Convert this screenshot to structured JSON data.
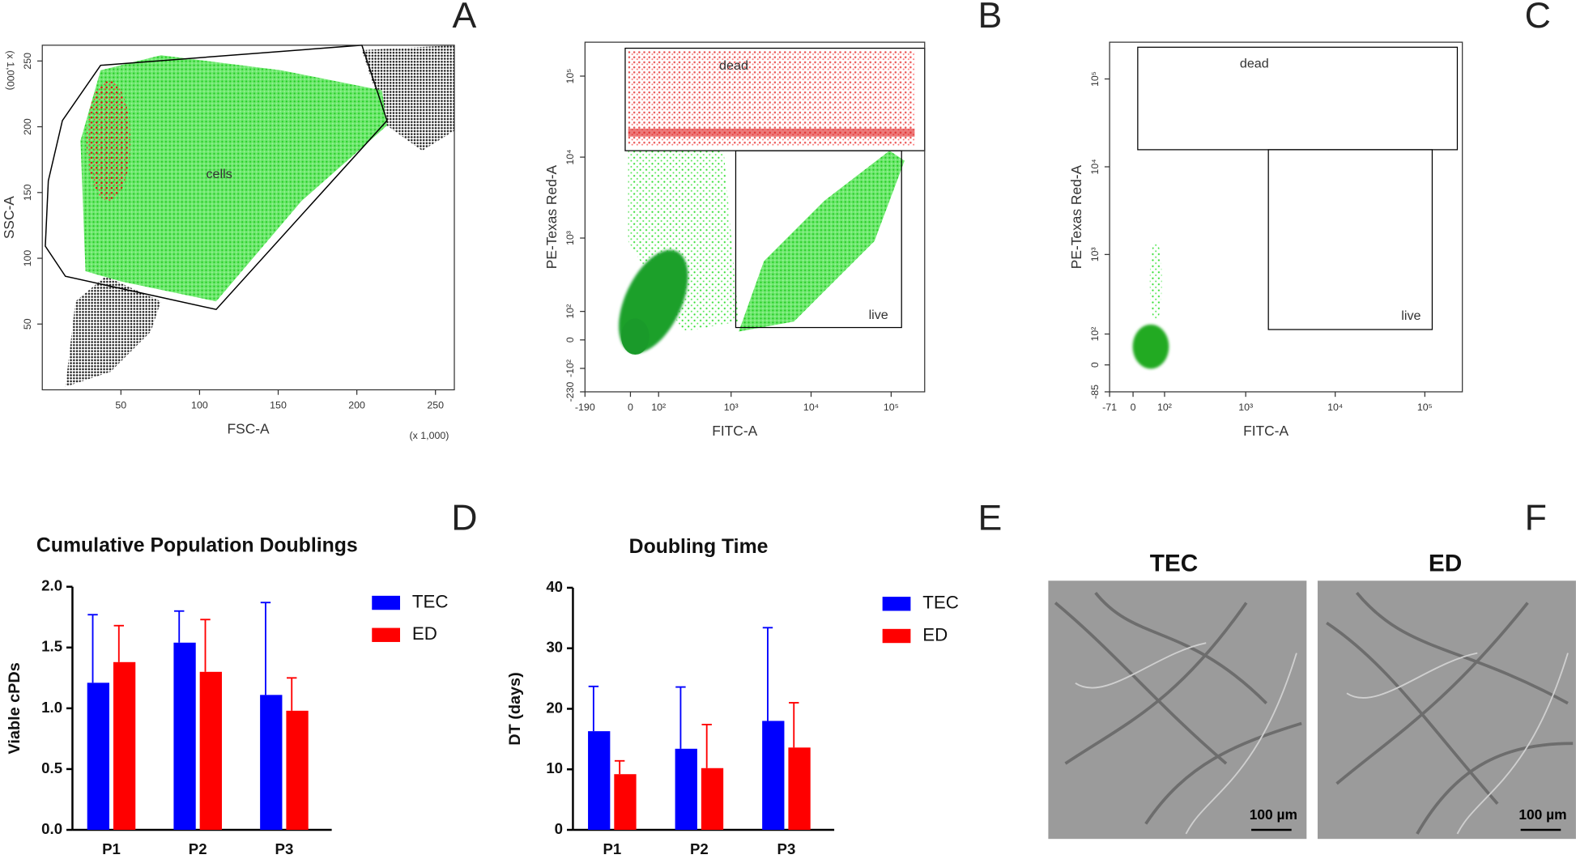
{
  "chart_data": [
    {
      "type": "scatter",
      "panel": "A",
      "x_label": "FSC-A",
      "y_label": "SSC-A",
      "x_multiplier": "(x 1,000)",
      "y_multiplier": "(x 1,000)",
      "annotations": [
        "cells"
      ],
      "xscale": "linear",
      "yscale": "linear",
      "xlim": [
        0,
        262
      ],
      "ylim": [
        0,
        262
      ],
      "xticks": [
        50,
        100,
        150,
        200,
        250
      ],
      "yticks": [
        50,
        100,
        150,
        200,
        250
      ]
    },
    {
      "type": "scatter",
      "panel": "B",
      "x_label": "FITC-A",
      "y_label": "PE-Texas Red-A",
      "annotations": [
        "dead",
        "live"
      ],
      "xscale": "biexponential",
      "yscale": "biexponential",
      "xlim": [
        -190,
        262144
      ],
      "ylim": [
        -230,
        262144
      ],
      "xticks": [
        -190,
        0,
        {
          "value": 100,
          "label": "10²"
        },
        {
          "value": 1000,
          "label": "10³"
        },
        {
          "value": 10000,
          "label": "10⁴"
        },
        {
          "value": 100000,
          "label": "10⁵"
        }
      ],
      "yticks": [
        -230,
        {
          "value": -100,
          "label": "-10²"
        },
        0,
        {
          "value": 100,
          "label": "10²"
        },
        {
          "value": 1000,
          "label": "10³"
        },
        {
          "value": 10000,
          "label": "10⁴"
        },
        {
          "value": 100000,
          "label": "10⁵"
        }
      ]
    },
    {
      "type": "scatter",
      "panel": "C",
      "x_label": "FITC-A",
      "y_label": "PE-Texas Red-A",
      "annotations": [
        "dead",
        "live"
      ],
      "xscale": "biexponential",
      "yscale": "biexponential",
      "xlim": [
        -71,
        262144
      ],
      "ylim": [
        -85,
        262144
      ],
      "xticks": [
        -71,
        0,
        {
          "value": 100,
          "label": "10²"
        },
        {
          "value": 1000,
          "label": "10³"
        },
        {
          "value": 10000,
          "label": "10⁴"
        },
        {
          "value": 100000,
          "label": "10⁵"
        }
      ],
      "yticks": [
        -85,
        0,
        {
          "value": 100,
          "label": "10²"
        },
        {
          "value": 1000,
          "label": "10³"
        },
        {
          "value": 10000,
          "label": "10⁴"
        },
        {
          "value": 100000,
          "label": "10⁵"
        }
      ]
    },
    {
      "type": "bar",
      "panel": "D",
      "title": "Cumulative Population Doublings",
      "y_label": "Viable cPDs",
      "categories": [
        "P1",
        "P2",
        "P3"
      ],
      "series": [
        {
          "name": "TEC",
          "color": "#0000ff",
          "values": [
            1.21,
            1.54,
            1.11
          ],
          "errors": [
            0.56,
            0.26,
            0.76
          ]
        },
        {
          "name": "ED",
          "color": "#ff0000",
          "values": [
            1.38,
            1.3,
            0.98
          ],
          "errors": [
            0.3,
            0.43,
            0.27
          ]
        }
      ],
      "ylim": [
        0,
        2
      ],
      "yticks": [
        {
          "value": 0,
          "label": "0.0"
        },
        {
          "value": 0.5,
          "label": "0.5"
        },
        {
          "value": 1,
          "label": "1.0"
        },
        {
          "value": 1.5,
          "label": "1.5"
        },
        {
          "value": 2,
          "label": "2.0"
        }
      ]
    },
    {
      "type": "bar",
      "panel": "E",
      "title": "Doubling Time",
      "y_label": "DT (days)",
      "categories": [
        "P1",
        "P2",
        "P3"
      ],
      "series": [
        {
          "name": "TEC",
          "color": "#0000ff",
          "values": [
            16.3,
            13.4,
            18.0
          ],
          "errors": [
            7.4,
            10.2,
            15.4
          ]
        },
        {
          "name": "ED",
          "color": "#ff0000",
          "values": [
            9.2,
            10.2,
            13.6
          ],
          "errors": [
            2.2,
            7.2,
            7.4
          ]
        }
      ],
      "ylim": [
        0,
        40
      ],
      "yticks": [
        0,
        10,
        20,
        30,
        40
      ]
    }
  ],
  "micrographs": {
    "panel": "F",
    "labels": [
      "TEC",
      "ED"
    ],
    "scale_bar": "100 µm"
  }
}
